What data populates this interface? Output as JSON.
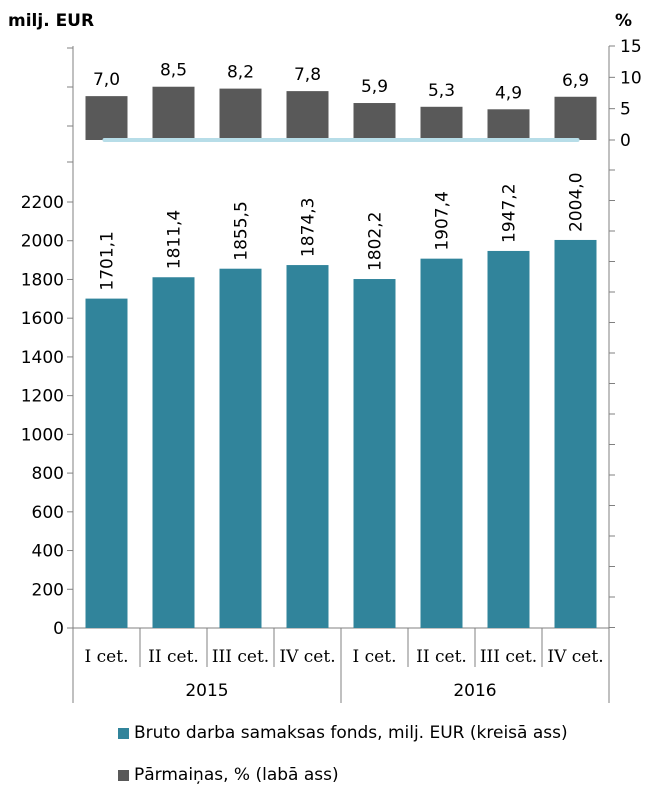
{
  "chart_data": {
    "type": "bar",
    "left_axis_title": "milj. EUR",
    "right_axis_title": "%",
    "categories": [
      "I cet.",
      "II cet.",
      "III cet.",
      "IV cet.",
      "I cet.",
      "II cet.",
      "III cet.",
      "IV cet."
    ],
    "years": [
      {
        "label": "2015",
        "span": [
          0,
          3
        ]
      },
      {
        "label": "2016",
        "span": [
          4,
          7
        ]
      }
    ],
    "left_ylim": [
      0,
      2200
    ],
    "left_ticks": [
      "0",
      "200",
      "400",
      "600",
      "800",
      "1000",
      "1200",
      "1400",
      "1600",
      "1800",
      "2000",
      "2200"
    ],
    "right_ylim": [
      0,
      15
    ],
    "right_ticks": [
      "0",
      "5",
      "10",
      "15"
    ],
    "series": [
      {
        "name": "Bruto darba samaksas fonds, milj. EUR (kreisā ass)",
        "axis": "left",
        "color": "#31849b",
        "values": [
          1701.1,
          1811.4,
          1855.5,
          1874.3,
          1802.2,
          1907.4,
          1947.2,
          2004.0
        ],
        "labels": [
          "1701,1",
          "1811,4",
          "1855,5",
          "1874,3",
          "1802,2",
          "1907,4",
          "1947,2",
          "2004,0"
        ]
      },
      {
        "name": "Pārmaiņas, % (labā ass)",
        "axis": "right",
        "color": "#595959",
        "values": [
          7.0,
          8.5,
          8.2,
          7.8,
          5.9,
          5.3,
          4.9,
          6.9
        ],
        "labels": [
          "7,0",
          "8,5",
          "8,2",
          "7,8",
          "5,9",
          "5,3",
          "4,9",
          "6,9"
        ]
      }
    ],
    "zero_line_color": "#b7dde8"
  }
}
